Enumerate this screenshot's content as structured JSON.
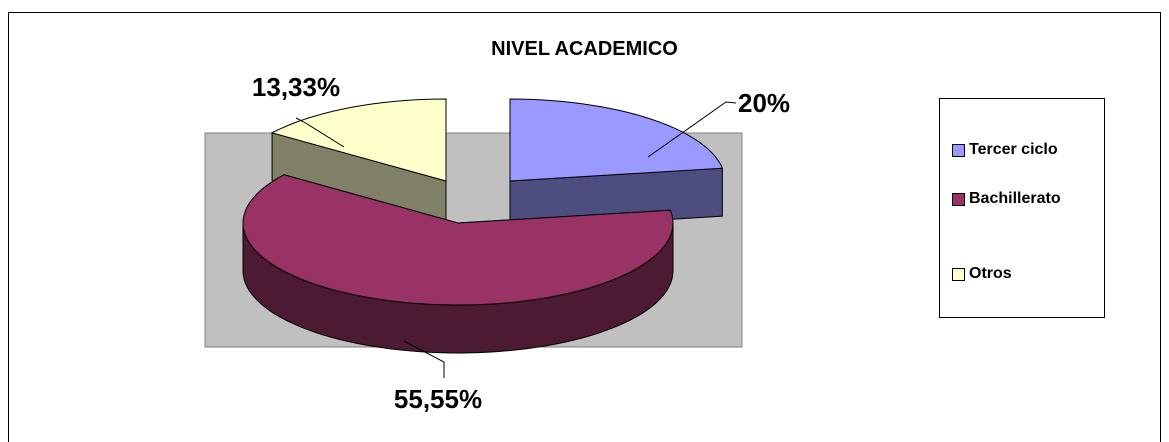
{
  "chart_data": {
    "type": "pie",
    "title": "NIVEL ACADEMICO",
    "categories": [
      "Tercer ciclo",
      "Bachillerato",
      "Otros"
    ],
    "values": [
      20,
      55.55,
      13.33
    ],
    "data_labels": [
      "20%",
      "55,55%",
      "13,33%"
    ],
    "colors": {
      "Tercer ciclo": "#9999FF",
      "Bachillerato": "#993366",
      "Otros": "#FFFFCC"
    },
    "legend_placement": "right",
    "three_d": true
  }
}
